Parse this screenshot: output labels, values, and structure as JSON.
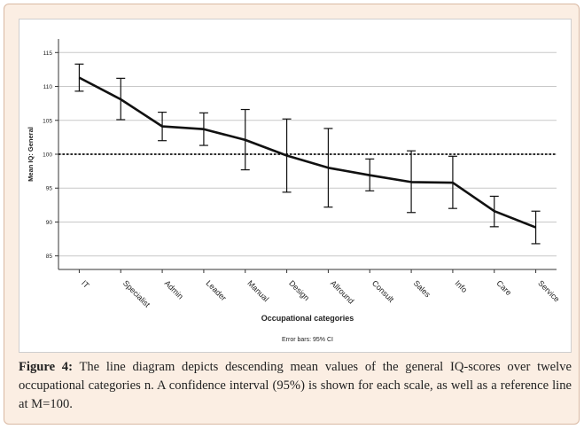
{
  "chart_data": {
    "type": "line",
    "categories": [
      "IT",
      "Specialist",
      "Admin",
      "Leader",
      "Manual",
      "Design",
      "Allround",
      "Consult",
      "Sales",
      "Info",
      "Care",
      "Service"
    ],
    "series": [
      {
        "values": [
          111.3,
          108.1,
          104.1,
          103.7,
          102.1,
          99.8,
          98.0,
          96.9,
          95.9,
          95.8,
          91.6,
          89.2
        ],
        "ci_lower": [
          109.3,
          105.1,
          102.0,
          101.3,
          97.7,
          94.4,
          92.2,
          94.6,
          91.4,
          92.0,
          89.3,
          86.8
        ],
        "ci_upper": [
          113.3,
          111.2,
          106.2,
          106.1,
          106.6,
          105.2,
          103.8,
          99.3,
          100.5,
          99.7,
          93.8,
          91.6
        ]
      }
    ],
    "reference_line": 100,
    "ylim": [
      83,
      117
    ],
    "yticks": [
      85,
      90,
      95,
      100,
      105,
      110,
      115
    ],
    "xlabel": "Occupational categories",
    "ylabel": "Mean IQ: General",
    "note": "Error bars: 95% CI",
    "grid": "horizontal",
    "line_color": "#111111",
    "grid_color": "#c8c8c8"
  },
  "caption": {
    "label": "Figure 4:",
    "text": " The line diagram depicts descending mean values of the general IQ-scores over twelve occupational categories n. A confidence interval (95%) is shown for each scale, as well as a reference line at M=100."
  }
}
